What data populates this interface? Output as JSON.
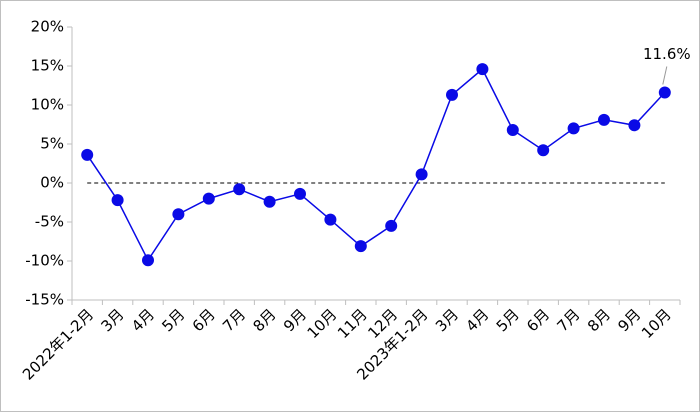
{
  "chart_data": {
    "type": "line",
    "categories": [
      "2022年1-2月",
      "3月",
      "4月",
      "5月",
      "6月",
      "7月",
      "8月",
      "9月",
      "10月",
      "11月",
      "12月",
      "2023年1-2月",
      "3月",
      "4月",
      "5月",
      "6月",
      "7月",
      "8月",
      "9月",
      "10月"
    ],
    "values": [
      3.6,
      -2.2,
      -9.9,
      -4.0,
      -2.0,
      -0.8,
      -2.4,
      -1.4,
      -4.7,
      -8.1,
      -5.5,
      1.1,
      11.3,
      14.6,
      6.8,
      4.2,
      7.0,
      8.1,
      7.4,
      11.6
    ],
    "value_labels": [
      null,
      null,
      null,
      null,
      null,
      null,
      null,
      null,
      null,
      null,
      null,
      null,
      null,
      null,
      null,
      null,
      null,
      null,
      null,
      "11.6%"
    ],
    "color": "#0a0ae6",
    "ylim": [
      -15,
      20
    ],
    "yticks": [
      {
        "value": -15,
        "label": "-15%"
      },
      {
        "value": -10,
        "label": "-10%"
      },
      {
        "value": -5,
        "label": "-5%"
      },
      {
        "value": 0,
        "label": "0%"
      },
      {
        "value": 5,
        "label": "5%"
      },
      {
        "value": 10,
        "label": "10%"
      },
      {
        "value": 15,
        "label": "15%"
      },
      {
        "value": 20,
        "label": "20%"
      }
    ],
    "zero_line": true
  }
}
